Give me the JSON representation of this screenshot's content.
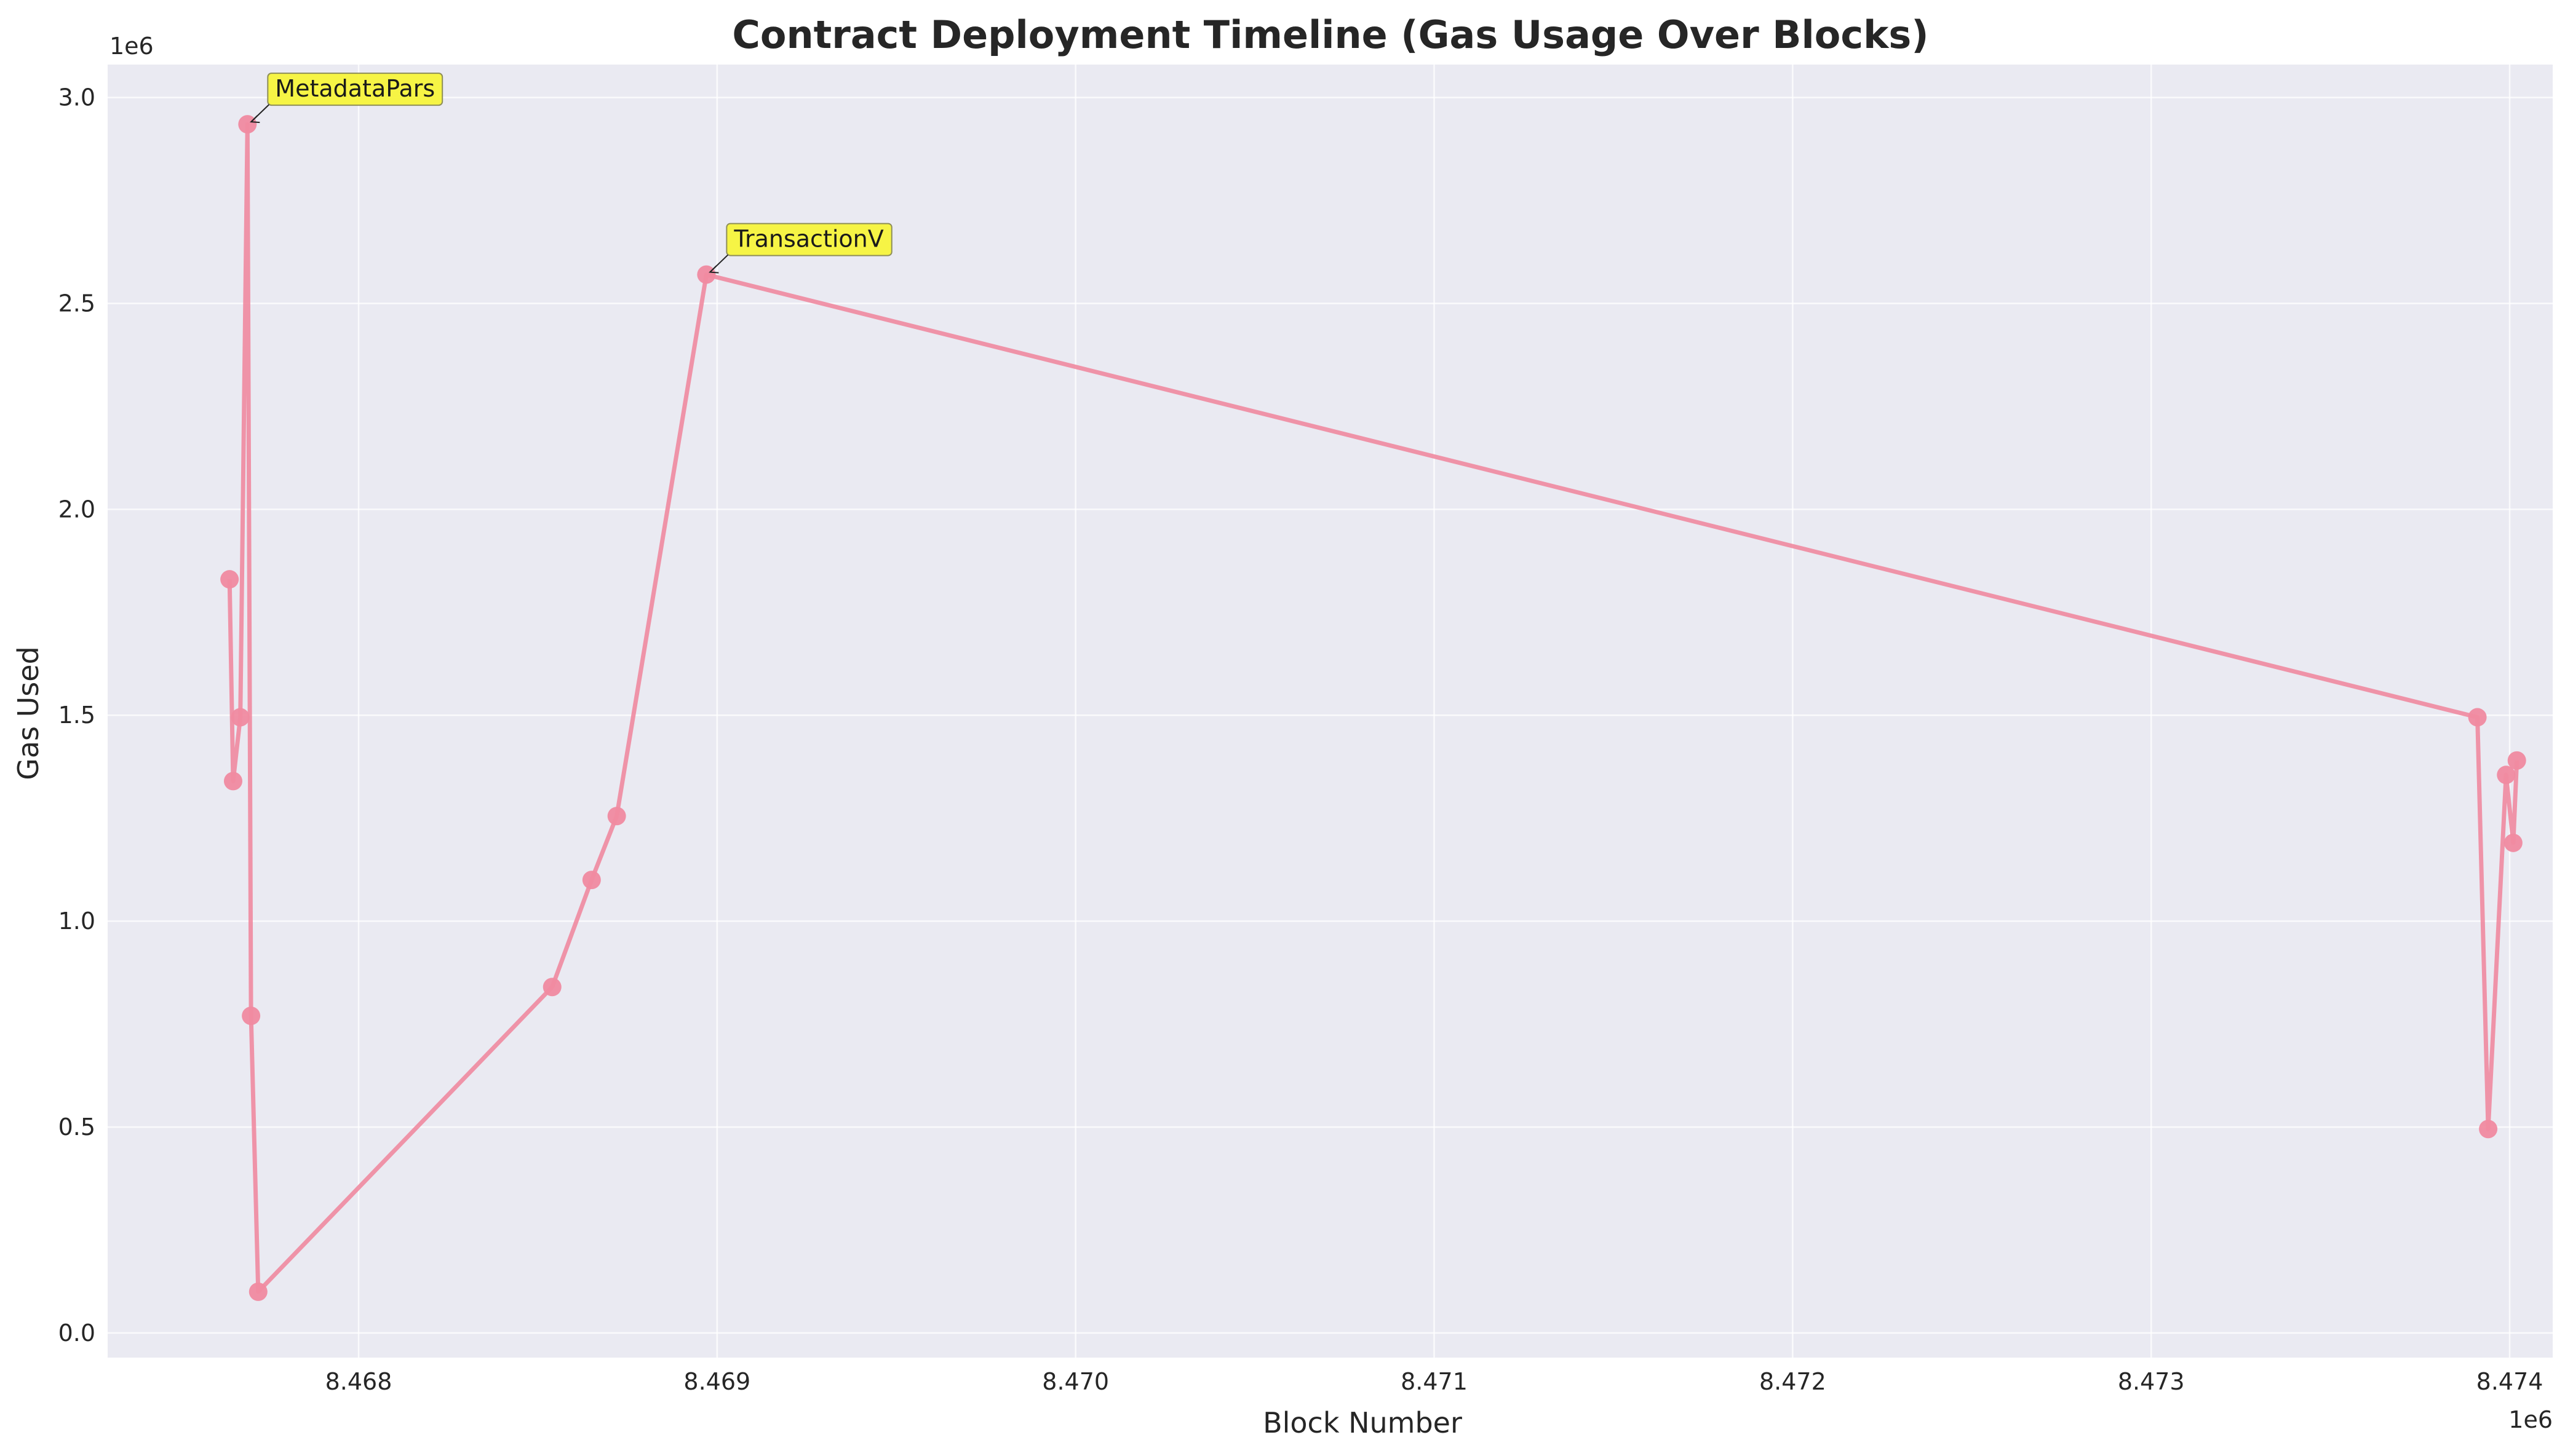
{
  "chart_data": {
    "type": "line",
    "title": "Contract Deployment Timeline (Gas Usage Over Blocks)",
    "xlabel": "Block Number",
    "ylabel": "Gas Used",
    "x_offset_label": "1e6",
    "y_offset_label": "1e6",
    "xlim": [
      8467300,
      8474120
    ],
    "ylim": [
      -60000,
      3080000
    ],
    "x_ticks": [
      {
        "value": 8468000,
        "label": "8.468"
      },
      {
        "value": 8469000,
        "label": "8.469"
      },
      {
        "value": 8470000,
        "label": "8.470"
      },
      {
        "value": 8471000,
        "label": "8.471"
      },
      {
        "value": 8472000,
        "label": "8.472"
      },
      {
        "value": 8473000,
        "label": "8.473"
      },
      {
        "value": 8474000,
        "label": "8.474"
      }
    ],
    "y_ticks": [
      {
        "value": 0,
        "label": "0.0"
      },
      {
        "value": 500000,
        "label": "0.5"
      },
      {
        "value": 1000000,
        "label": "1.0"
      },
      {
        "value": 1500000,
        "label": "1.5"
      },
      {
        "value": 2000000,
        "label": "2.0"
      },
      {
        "value": 2500000,
        "label": "2.5"
      },
      {
        "value": 3000000,
        "label": "3.0"
      }
    ],
    "grid": true,
    "series": [
      {
        "color": "#f08aa0",
        "x": [
          8467640,
          8467650,
          8467670,
          8467690,
          8467700,
          8467720,
          8468540,
          8468650,
          8468720,
          8468970,
          8473910,
          8473940,
          8473990,
          8474010,
          8474020
        ],
        "y": [
          1830000,
          1340000,
          1495000,
          2935000,
          770000,
          100000,
          840000,
          1100000,
          1255000,
          2570000,
          1495000,
          495000,
          1355000,
          1190000,
          1390000
        ]
      }
    ],
    "annotations": [
      {
        "text": "MetadataPars",
        "x": 8467690,
        "y": 2935000
      },
      {
        "text": "TransactionV",
        "x": 8468970,
        "y": 2570000
      }
    ]
  }
}
